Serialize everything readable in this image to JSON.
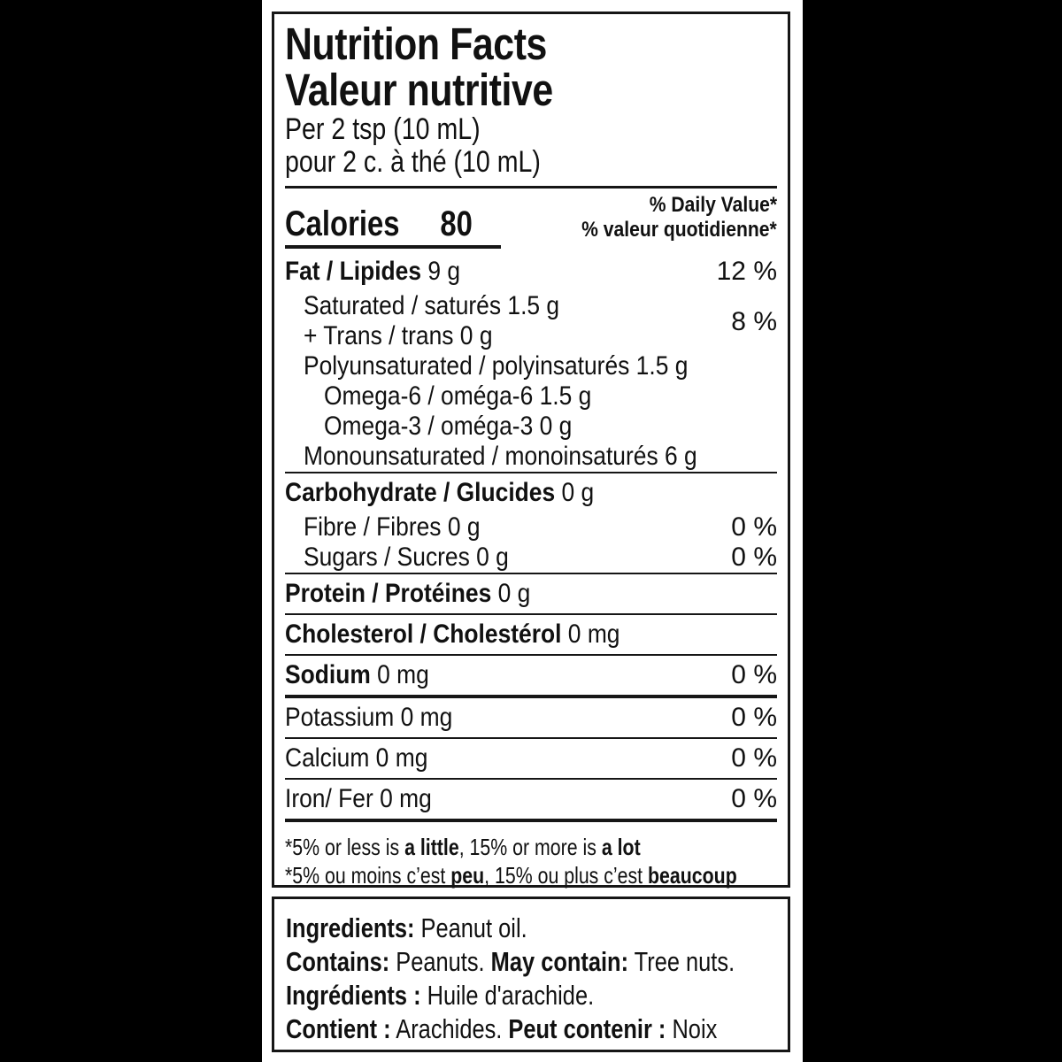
{
  "label": {
    "title_en": "Nutrition Facts",
    "title_fr": "Valeur nutritive",
    "serving_en": "Per 2 tsp (10 mL)",
    "serving_fr": "pour 2 c. à thé (10 mL)",
    "calories_label": "Calories",
    "calories_value": "80",
    "daily_value_en": "% Daily Value*",
    "daily_value_fr": "% valeur quotidienne*",
    "rows": [
      {
        "type": "row",
        "indent": 0,
        "major": true,
        "bold": "Fat / Lipides",
        "text": "9 g",
        "pct": "12 %"
      },
      {
        "type": "row",
        "indent": 1,
        "text": "Saturated / saturés 1.5 g",
        "pct": "8 %",
        "pct_shift": true
      },
      {
        "type": "row",
        "indent": 1,
        "text": "+ Trans / trans 0 g"
      },
      {
        "type": "row",
        "indent": 1,
        "text": "Polyunsaturated / polyinsaturés 1.5 g"
      },
      {
        "type": "row",
        "indent": 2,
        "text": "Omega-6 / oméga-6 1.5 g"
      },
      {
        "type": "row",
        "indent": 2,
        "text": "Omega-3 / oméga-3 0 g"
      },
      {
        "type": "row",
        "indent": 1,
        "text": "Monounsaturated / monoinsaturés 6 g"
      },
      {
        "type": "rule",
        "weight": "thin"
      },
      {
        "type": "row",
        "indent": 0,
        "major": true,
        "bold": "Carbohydrate / Glucides",
        "text": "0 g"
      },
      {
        "type": "row",
        "indent": 1,
        "text": "Fibre / Fibres 0 g",
        "pct": "0 %"
      },
      {
        "type": "row",
        "indent": 1,
        "text": "Sugars / Sucres 0 g",
        "pct": "0 %"
      },
      {
        "type": "rule",
        "weight": "thin"
      },
      {
        "type": "row",
        "indent": 0,
        "major": true,
        "bold": "Protein / Protéines",
        "text": "0 g"
      },
      {
        "type": "rule",
        "weight": "thin"
      },
      {
        "type": "row",
        "indent": 0,
        "major": true,
        "bold": "Cholesterol / Cholestérol",
        "text": "0 mg"
      },
      {
        "type": "rule",
        "weight": "thin"
      },
      {
        "type": "row",
        "indent": 0,
        "major": true,
        "bold": "Sodium",
        "text": "0 mg",
        "pct": "0 %"
      },
      {
        "type": "rule",
        "weight": "thick"
      },
      {
        "type": "row",
        "indent": 0,
        "major": true,
        "text": "Potassium 0 mg",
        "pct": "0 %"
      },
      {
        "type": "rule",
        "weight": "thin"
      },
      {
        "type": "row",
        "indent": 0,
        "major": true,
        "text": "Calcium 0 mg",
        "pct": "0 %"
      },
      {
        "type": "rule",
        "weight": "thin"
      },
      {
        "type": "row",
        "indent": 0,
        "major": true,
        "text": "Iron/ Fer 0 mg",
        "pct": "0 %"
      },
      {
        "type": "rule",
        "weight": "thick"
      }
    ],
    "footnotes": [
      {
        "segments": [
          {
            "t": "*5% or less is "
          },
          {
            "t": "a little",
            "b": true
          },
          {
            "t": ", 15% or more is "
          },
          {
            "t": "a lot",
            "b": true
          }
        ]
      },
      {
        "segments": [
          {
            "t": "*5% ou moins c’est "
          },
          {
            "t": "peu",
            "b": true
          },
          {
            "t": ", 15% ou plus c’est "
          },
          {
            "t": "beaucoup",
            "b": true
          }
        ]
      }
    ]
  },
  "ingredients": {
    "lines": [
      {
        "segments": [
          {
            "t": "Ingredients:",
            "b": true
          },
          {
            "t": " Peanut oil."
          }
        ]
      },
      {
        "segments": [
          {
            "t": "Contains:",
            "b": true
          },
          {
            "t": " Peanuts. "
          },
          {
            "t": "May contain:",
            "b": true
          },
          {
            "t": " Tree nuts."
          }
        ]
      },
      {
        "segments": [
          {
            "t": "Ingrédients :",
            "b": true
          },
          {
            "t": " Huile d'arachide."
          }
        ]
      },
      {
        "segments": [
          {
            "t": "Contient :",
            "b": true
          },
          {
            "t": " Arachides. "
          },
          {
            "t": "Peut contenir :",
            "b": true
          },
          {
            "t": " Noix"
          }
        ]
      }
    ]
  },
  "colors": {
    "text": "#161616",
    "background": "#ffffff",
    "page_bars": "#000000"
  }
}
